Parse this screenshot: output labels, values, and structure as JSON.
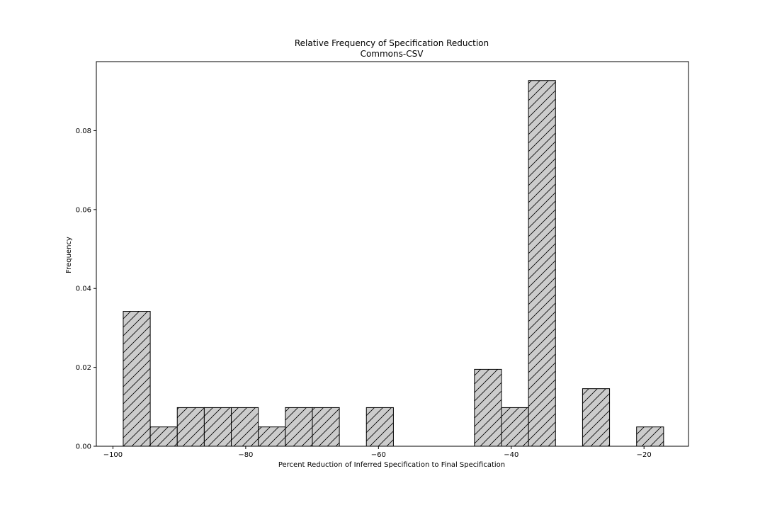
{
  "chart_data": {
    "type": "bar",
    "title": "Relative Frequency of Specification Reduction",
    "subtitle": "Commons-CSV",
    "xlabel": "Percent Reduction of Inferred Specification to Final Specification",
    "ylabel": "Frequency",
    "xlim": [
      -102.5,
      -13.3
    ],
    "ylim": [
      0,
      0.0975
    ],
    "xticks": [
      -100,
      -80,
      -60,
      -40,
      -20
    ],
    "xtick_labels": [
      "−100",
      "−80",
      "−60",
      "−40",
      "−20"
    ],
    "yticks": [
      0.0,
      0.02,
      0.04,
      0.06,
      0.08
    ],
    "ytick_labels": [
      "0.00",
      "0.02",
      "0.04",
      "0.06",
      "0.08"
    ],
    "bin_width": 4.07,
    "bars": [
      {
        "x_start": -98.45,
        "value": 0.0342
      },
      {
        "x_start": -94.38,
        "value": 0.0049
      },
      {
        "x_start": -90.31,
        "value": 0.0098
      },
      {
        "x_start": -86.24,
        "value": 0.0098
      },
      {
        "x_start": -82.17,
        "value": 0.0098
      },
      {
        "x_start": -78.1,
        "value": 0.0049
      },
      {
        "x_start": -74.03,
        "value": 0.0098
      },
      {
        "x_start": -69.96,
        "value": 0.0098
      },
      {
        "x_start": -61.82,
        "value": 0.0098
      },
      {
        "x_start": -45.54,
        "value": 0.0195
      },
      {
        "x_start": -41.47,
        "value": 0.0098
      },
      {
        "x_start": -37.4,
        "value": 0.0927
      },
      {
        "x_start": -29.26,
        "value": 0.0146
      },
      {
        "x_start": -21.12,
        "value": 0.0049
      }
    ],
    "bar_fill": "#cccccc",
    "bar_edge": "#000000",
    "hatch": "diagonal",
    "grid": false,
    "legend": "none"
  }
}
